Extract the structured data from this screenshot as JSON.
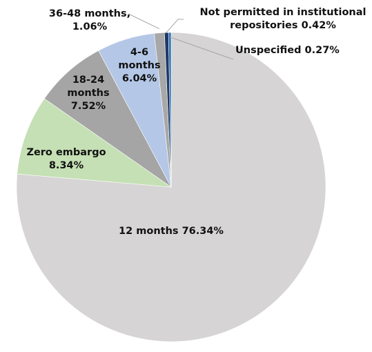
{
  "chart_data": {
    "type": "pie",
    "title": "",
    "slices": [
      {
        "label": "12 months",
        "value": 76.34,
        "value_label": "76.34%",
        "color": "#d6d4d4"
      },
      {
        "label": "Zero embargo",
        "value": 8.34,
        "value_label": "8.34%",
        "color": "#c5e0b4"
      },
      {
        "label": "18-24 months",
        "value": 7.52,
        "value_label": "7.52%",
        "color": "#a5a5a5"
      },
      {
        "label": "4-6 months",
        "value": 6.04,
        "value_label": "6.04%",
        "color": "#b4c7e7"
      },
      {
        "label": "36-48 months,",
        "value": 1.06,
        "value_label": "1.06%",
        "color": "#a8a8a8"
      },
      {
        "label": "Not permitted in institutional repositories",
        "value": 0.42,
        "value_label": "0.42%",
        "color": "#203864"
      },
      {
        "label": "Unspecified",
        "value": 0.27,
        "value_label": "0.27%",
        "color": "#2e75b6"
      }
    ]
  }
}
